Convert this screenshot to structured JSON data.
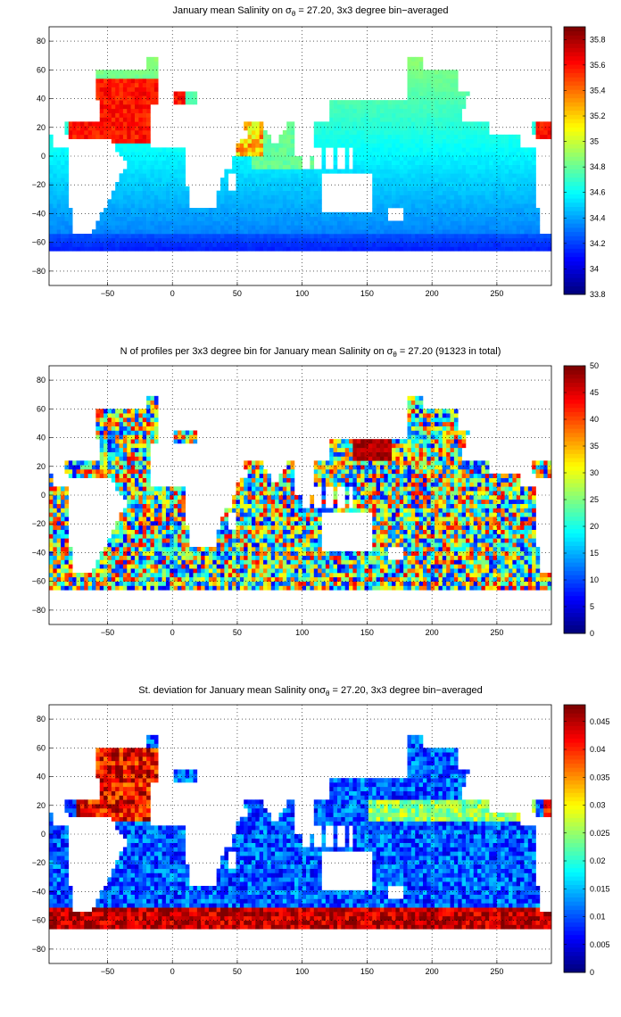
{
  "chart_data": [
    {
      "type": "heatmap",
      "title_prefix": "January mean Salinity on ",
      "title_sigma": "σ",
      "title_sub": "θ",
      "title_suffix": " = 27.20, 3x3 degree bin−averaged",
      "field": "salinity",
      "xlim": [
        -95,
        292
      ],
      "ylim": [
        -90,
        90
      ],
      "x_ticks": [
        "−50",
        "0",
        "50",
        "100",
        "150",
        "200",
        "250"
      ],
      "y_ticks": [
        "80",
        "60",
        "40",
        "20",
        "0",
        "−20",
        "−40",
        "−60",
        "−80"
      ],
      "colorbar_ticks": [
        "35.8",
        "35.6",
        "35.4",
        "35.2",
        "35",
        "34.8",
        "34.6",
        "34.4",
        "34.2",
        "34",
        "33.8"
      ],
      "clim": [
        33.8,
        35.9
      ],
      "colormap": "jet",
      "grid": true
    },
    {
      "type": "heatmap",
      "title_prefix": "N of profiles per 3x3 degree bin for January mean Salinity on ",
      "title_sigma": "σ",
      "title_sub": "θ",
      "title_suffix": " = 27.20 (91323 in total)",
      "field": "count",
      "xlim": [
        -95,
        292
      ],
      "ylim": [
        -90,
        90
      ],
      "x_ticks": [
        "−50",
        "0",
        "50",
        "100",
        "150",
        "200",
        "250"
      ],
      "y_ticks": [
        "80",
        "60",
        "40",
        "20",
        "0",
        "−20",
        "−40",
        "−60",
        "−80"
      ],
      "colorbar_ticks": [
        "50",
        "45",
        "40",
        "35",
        "30",
        "25",
        "20",
        "15",
        "10",
        "5",
        "0"
      ],
      "clim": [
        0,
        50
      ],
      "colormap": "jet",
      "grid": true
    },
    {
      "type": "heatmap",
      "title_prefix": "St. deviation for January mean Salinity on",
      "title_sigma": "σ",
      "title_sub": "θ",
      "title_suffix": " = 27.20, 3x3 degree bin−averaged",
      "field": "stdev",
      "xlim": [
        -95,
        292
      ],
      "ylim": [
        -90,
        90
      ],
      "x_ticks": [
        "−50",
        "0",
        "50",
        "100",
        "150",
        "200",
        "250"
      ],
      "y_ticks": [
        "80",
        "60",
        "40",
        "20",
        "0",
        "−20",
        "−40",
        "−60",
        "−80"
      ],
      "colorbar_ticks": [
        "0.045",
        "0.04",
        "0.035",
        "0.03",
        "0.025",
        "0.02",
        "0.015",
        "0.01",
        "0.005",
        "0"
      ],
      "clim": [
        0,
        0.048
      ],
      "colormap": "jet",
      "grid": true
    }
  ]
}
